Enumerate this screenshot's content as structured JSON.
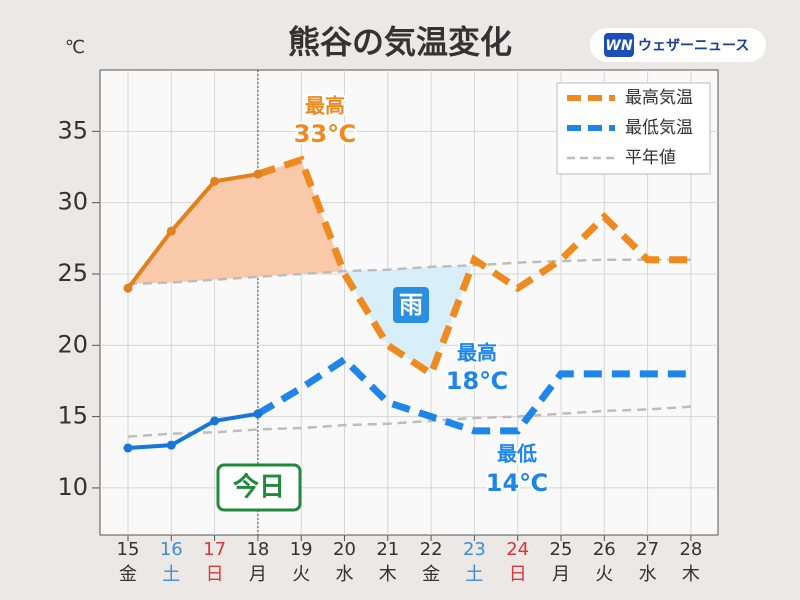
{
  "chart_data": {
    "type": "line",
    "title": "熊谷の気温変化",
    "y_unit": "℃",
    "brand_mark": "WN",
    "brand": "ウェザーニュース",
    "categories": [
      "15",
      "16",
      "17",
      "18",
      "19",
      "20",
      "21",
      "22",
      "23",
      "24",
      "25",
      "26",
      "27",
      "28"
    ],
    "weekdays": [
      "金",
      "土",
      "日",
      "月",
      "火",
      "水",
      "木",
      "金",
      "土",
      "日",
      "月",
      "火",
      "水",
      "木"
    ],
    "weekday_colors": {
      "土": "#3a8ed8",
      "日": "#d8383a"
    },
    "today_index": 3,
    "today_label": "今日",
    "series": [
      {
        "name": "最高気温",
        "color": "#f08a1e",
        "observed_color": "#e2801c",
        "values": [
          24,
          28,
          31.5,
          32,
          33,
          25,
          20,
          18,
          26,
          24,
          26,
          29,
          26,
          26
        ]
      },
      {
        "name": "最低気温",
        "color": "#1e86ea",
        "observed_color": "#1677d8",
        "values": [
          12.8,
          13,
          14.7,
          15.2,
          17,
          19,
          16,
          15,
          14,
          14,
          18,
          18,
          18,
          18
        ]
      }
    ],
    "normals": {
      "name": "平年値",
      "color": "#bdbdbd",
      "max": [
        24.3,
        24.4,
        24.6,
        24.8,
        25.0,
        25.2,
        25.3,
        25.5,
        25.6,
        25.8,
        25.9,
        26.0,
        26.0,
        26.0
      ],
      "min": [
        13.6,
        13.8,
        13.9,
        14.1,
        14.2,
        14.4,
        14.5,
        14.7,
        14.9,
        15.0,
        15.2,
        15.4,
        15.5,
        15.7
      ]
    },
    "shading": [
      {
        "where": "above",
        "from": 0,
        "to": 5,
        "color": "#fac9aa"
      },
      {
        "where": "below",
        "from": 5,
        "to": 8,
        "color": "#d8effa",
        "label": "雨",
        "label_color": "#2a8fe0"
      }
    ],
    "annotations": [
      {
        "lines": [
          "最高",
          "33℃"
        ],
        "color": "#f08a1e"
      },
      {
        "lines": [
          "最高",
          "18℃"
        ],
        "color": "#1e86ea"
      },
      {
        "lines": [
          "最低",
          "14℃"
        ],
        "color": "#1e86ea"
      }
    ],
    "ylim": [
      6.7,
      39.3
    ],
    "yticks": [
      10,
      15,
      20,
      25,
      30,
      35
    ],
    "grid": true,
    "legend": "upper right"
  }
}
